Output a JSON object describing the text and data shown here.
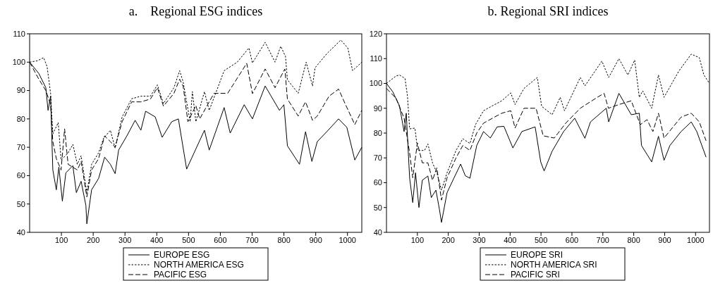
{
  "chart_data": [
    {
      "type": "line",
      "title": "a.    Regional ESG indices",
      "xlim": [
        0,
        1045
      ],
      "xticks": [
        100,
        200,
        300,
        400,
        500,
        600,
        700,
        800,
        900,
        1000
      ],
      "ylim": [
        40,
        110
      ],
      "yticks": [
        40,
        50,
        60,
        70,
        80,
        90,
        100,
        110
      ],
      "grid": false,
      "legend": "bottom",
      "marker": "none",
      "series": [
        {
          "name": "EUROPE ESG",
          "color": "#000000",
          "line_style": "solid",
          "x": [
            0,
            29,
            51,
            58,
            66,
            73,
            84,
            92,
            103,
            114,
            136,
            147,
            162,
            177,
            180,
            195,
            217,
            236,
            254,
            269,
            280,
            306,
            332,
            350,
            365,
            395,
            417,
            447,
            468,
            494,
            550,
            565,
            612,
            631,
            675,
            701,
            741,
            786,
            800,
            811,
            849,
            868,
            888,
            905,
            935,
            972,
            998,
            1023,
            1045
          ],
          "values": [
            100,
            96,
            91,
            83,
            88,
            62,
            55,
            63,
            51,
            61,
            63.5,
            54,
            58,
            49.5,
            43,
            55,
            59,
            66.5,
            64,
            60.7,
            69,
            74,
            79.5,
            76,
            82.7,
            80.7,
            73.5,
            79,
            80,
            62.3,
            76,
            69,
            84,
            75,
            85,
            80,
            91.6,
            83,
            85,
            70.5,
            64,
            75.5,
            65,
            72,
            75.5,
            80,
            77,
            65.5,
            70
          ]
        },
        {
          "name": "NORTH AMERICA ESG",
          "color": "#000000",
          "line_style": "dotted",
          "x": [
            0,
            25,
            44,
            55,
            66,
            73,
            90,
            99,
            121,
            136,
            150,
            162,
            180,
            195,
            217,
            232,
            254,
            269,
            291,
            321,
            350,
            380,
            402,
            421,
            454,
            472,
            483,
            505,
            512,
            523,
            550,
            565,
            612,
            653,
            690,
            701,
            741,
            772,
            790,
            805,
            811,
            845,
            870,
            890,
            898,
            935,
            979,
            1001,
            1016,
            1045
          ],
          "values": [
            100,
            100.5,
            101.6,
            98.4,
            89,
            74.7,
            78.7,
            65.5,
            68,
            71,
            64,
            67,
            54,
            64,
            68,
            73,
            76,
            69.7,
            80.7,
            87.1,
            88,
            88,
            92,
            85.4,
            91,
            97,
            93,
            79,
            89.6,
            79,
            89.6,
            83,
            97,
            100,
            105,
            99.7,
            107,
            100,
            105.6,
            102,
            93.8,
            89,
            100,
            91.6,
            98,
            103,
            107.8,
            105,
            97,
            100
          ]
        },
        {
          "name": "PACIFIC ESG",
          "color": "#000000",
          "line_style": "dashed",
          "x": [
            0,
            29,
            51,
            66,
            73,
            84,
            99,
            110,
            121,
            150,
            162,
            180,
            195,
            217,
            236,
            254,
            269,
            291,
            321,
            350,
            380,
            402,
            421,
            454,
            472,
            483,
            498,
            523,
            535,
            580,
            623,
            683,
            701,
            741,
            772,
            803,
            811,
            845,
            868,
            890,
            905,
            942,
            972,
            994,
            1023,
            1045
          ],
          "values": [
            100,
            94,
            90,
            85,
            72,
            66,
            62,
            76.5,
            64,
            62,
            65,
            52.5,
            62,
            66,
            74,
            72,
            70,
            79,
            86,
            86,
            87,
            91,
            84.5,
            89,
            94,
            91.5,
            79,
            84.7,
            80,
            89,
            89,
            99.6,
            88.9,
            97.6,
            91,
            97.6,
            87,
            81,
            86,
            79.5,
            81,
            88,
            90.5,
            85,
            78,
            83
          ]
        }
      ]
    },
    {
      "type": "line",
      "title": "b. Regional SRI indices",
      "xlim": [
        0,
        1045
      ],
      "xticks": [
        100,
        200,
        300,
        400,
        500,
        600,
        700,
        800,
        900,
        1000
      ],
      "ylim": [
        40,
        120
      ],
      "yticks": [
        40,
        50,
        60,
        70,
        80,
        90,
        100,
        110,
        120
      ],
      "grid": false,
      "legend": "bottom",
      "marker": "none",
      "series": [
        {
          "name": "EUROPE SRI",
          "color": "#000000",
          "line_style": "solid",
          "x": [
            0,
            20,
            42,
            57,
            64,
            75,
            85,
            94,
            105,
            116,
            134,
            145,
            160,
            171,
            178,
            196,
            218,
            240,
            255,
            270,
            292,
            314,
            336,
            358,
            380,
            409,
            438,
            481,
            499,
            510,
            536,
            573,
            609,
            642,
            660,
            711,
            719,
            752,
            792,
            818,
            825,
            858,
            880,
            898,
            917,
            953,
            986,
            1004,
            1034
          ],
          "values": [
            100,
            96.7,
            91,
            80.6,
            88,
            61.8,
            52,
            64,
            50,
            61,
            62.7,
            54,
            57,
            49.5,
            44,
            56,
            61.8,
            67.5,
            62.8,
            61.8,
            75,
            80.6,
            78,
            82.5,
            82.7,
            74,
            80.6,
            82.5,
            68.4,
            64.7,
            72.7,
            80.6,
            86,
            77.9,
            84.5,
            90,
            84.5,
            96,
            87.4,
            88,
            75,
            68.4,
            78.7,
            69,
            75,
            80.6,
            84.5,
            80.6,
            70.3
          ]
        },
        {
          "name": "NORTH AMERICA SRI",
          "color": "#000000",
          "line_style": "dotted",
          "x": [
            0,
            31,
            42,
            60,
            68,
            75,
            92,
            101,
            123,
            134,
            149,
            163,
            178,
            196,
            225,
            247,
            270,
            288,
            314,
            343,
            373,
            402,
            416,
            445,
            488,
            502,
            536,
            562,
            576,
            627,
            642,
            697,
            719,
            752,
            781,
            803,
            818,
            829,
            858,
            880,
            898,
            946,
            986,
            1012,
            1027,
            1045
          ],
          "values": [
            100,
            103,
            103.4,
            102,
            94.8,
            81.7,
            82,
            73,
            73,
            75.6,
            68,
            64,
            57,
            64,
            73,
            77.7,
            75.8,
            83.4,
            89,
            91,
            93,
            96.2,
            91.5,
            98,
            102.4,
            90.8,
            87.4,
            94.4,
            89,
            102.4,
            99,
            109,
            102.4,
            110,
            103.4,
            109.4,
            94.4,
            97,
            90,
            103.4,
            94.4,
            105,
            111.8,
            110.4,
            103.4,
            100
          ]
        },
        {
          "name": "PACIFIC SRI",
          "color": "#000000",
          "line_style": "dashed",
          "x": [
            0,
            31,
            57,
            75,
            85,
            100,
            116,
            134,
            149,
            163,
            178,
            196,
            225,
            247,
            270,
            292,
            314,
            343,
            373,
            402,
            416,
            445,
            484,
            507,
            543,
            580,
            627,
            682,
            704,
            718,
            752,
            792,
            821,
            843,
            862,
            880,
            898,
            953,
            986,
            1012,
            1034
          ],
          "values": [
            98,
            94,
            86,
            72,
            62,
            76,
            68,
            68,
            61,
            66,
            53,
            62,
            70,
            75,
            73,
            80,
            84,
            86,
            88,
            89,
            82,
            90,
            90,
            78.9,
            78,
            84,
            90,
            94.4,
            96,
            90,
            91.5,
            93,
            83.4,
            85.4,
            80.6,
            88,
            78,
            86.4,
            88,
            84.5,
            76.9
          ]
        }
      ]
    }
  ]
}
